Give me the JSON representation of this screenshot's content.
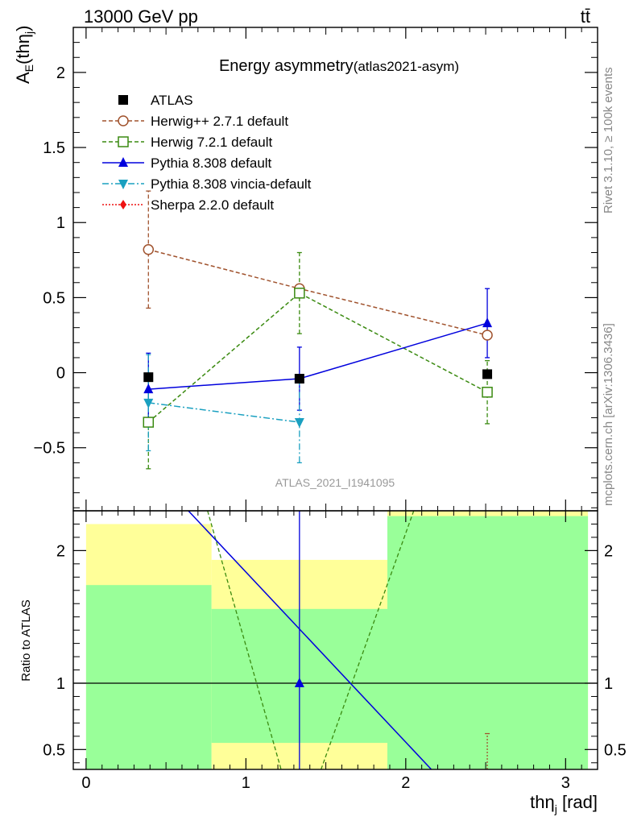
{
  "header": {
    "left": "13000 GeV pp",
    "right": "tt̄"
  },
  "side_text": {
    "rivet": "Rivet 3.1.10, ≥ 100k events",
    "mcplots": "mcplots.cern.ch [arXiv:1306.3436]"
  },
  "chart_data": {
    "type": "line",
    "title_main": "Energy asymmetry",
    "title_sub": "(atlas2021-asym)",
    "analysis": "ATLAS_2021_I1941095",
    "ylabel_base": "A",
    "ylabel_sub": "E",
    "ylabel_paren": "(thη",
    "ylabel_paren_sub": "j",
    "ylabel_close": ")",
    "xlabel_base": "thη",
    "xlabel_sub": "j",
    "xlabel_unit": " [rad]",
    "ratio_ylabel": "Ratio to ATLAS",
    "xlim": [
      -0.08,
      3.2
    ],
    "ylim": [
      -0.92,
      2.3
    ],
    "ratio_ylim": [
      0.35,
      2.3
    ],
    "x_ticks": [
      0,
      1,
      2,
      3
    ],
    "y_ticks": [
      -0.5,
      0,
      0.5,
      1,
      1.5,
      2
    ],
    "ratio_ticks": [
      0.5,
      1,
      2
    ],
    "x_tick_labels": [
      "0",
      "1",
      "2",
      "3"
    ],
    "y_tick_labels": [
      "−0.5",
      "0",
      "0.5",
      "1",
      "1.5",
      "2"
    ],
    "ratio_tick_labels": [
      "0.5",
      "1",
      "2"
    ],
    "bins": [
      {
        "lo": 0.0,
        "hi": 0.785
      },
      {
        "lo": 0.785,
        "hi": 1.885
      },
      {
        "lo": 1.885,
        "hi": 3.14
      }
    ],
    "bin_centers": [
      0.39,
      1.335,
      2.51
    ],
    "series": [
      {
        "name": "ATLAS",
        "color": "#000000",
        "marker": "square-filled",
        "line": "none",
        "x": [
          0.39,
          1.335,
          2.51
        ],
        "y": [
          -0.03,
          -0.04,
          -0.01
        ],
        "err": [
          0.0,
          0.0,
          0.0
        ]
      },
      {
        "name": "Herwig++ 2.7.1 default",
        "color": "#a0522d",
        "marker": "circle-open",
        "line": "dashed",
        "x": [
          0.39,
          1.335,
          2.51
        ],
        "y": [
          0.82,
          0.56,
          0.25
        ],
        "err": [
          0.39,
          0.0,
          0.0
        ]
      },
      {
        "name": "Herwig 7.2.1 default",
        "color": "#3a8a10",
        "marker": "square-open",
        "line": "dashed",
        "x": [
          0.39,
          1.335,
          2.51
        ],
        "y": [
          -0.33,
          0.53,
          -0.13
        ],
        "err": [
          0.31,
          0.27,
          0.21
        ]
      },
      {
        "name": "Pythia 8.308 default",
        "color": "#0000dd",
        "marker": "triangle-up",
        "line": "solid",
        "x": [
          0.39,
          1.335,
          2.51
        ],
        "y": [
          -0.11,
          -0.04,
          0.33
        ],
        "err": [
          0.24,
          0.21,
          0.23
        ]
      },
      {
        "name": "Pythia 8.308 vincia-default",
        "color": "#1aa0c0",
        "marker": "triangle-down",
        "line": "dashdot",
        "x": [
          0.39,
          1.335,
          2.51
        ],
        "y": [
          -0.2,
          -0.33,
          null
        ],
        "err": [
          0.32,
          0.27,
          0.0
        ]
      },
      {
        "name": "Sherpa 2.2.0 default",
        "color": "#ee1111",
        "marker": "diamond",
        "line": "dotted",
        "x": [],
        "y": [],
        "err": []
      }
    ],
    "ratio": {
      "bands": [
        {
          "lo": 0.0,
          "hi": 0.785,
          "yellow_top": 2.2,
          "green_top": 1.74
        },
        {
          "lo": 0.785,
          "hi": 1.885,
          "yellow_top": 1.93,
          "yellow_bot": 0.55,
          "green_top": 1.56
        },
        {
          "lo": 1.885,
          "hi": 3.14,
          "yellow_top": 2.3,
          "green_top": 2.26
        }
      ],
      "pythia_line": {
        "x": [
          0.64,
          2.16
        ],
        "y": [
          2.3,
          0.35
        ]
      },
      "pythia_point": {
        "x": 1.335,
        "y": 1.0
      },
      "herwig7_left": {
        "x": [
          0.76,
          1.22
        ],
        "y": [
          2.3,
          0.35
        ]
      },
      "herwig7_right": {
        "x": [
          1.47,
          2.05
        ],
        "y": [
          0.35,
          2.3
        ]
      },
      "herwigpp_err": {
        "x": 2.51,
        "y_lo": 0.35,
        "y_hi": 0.62
      }
    }
  }
}
